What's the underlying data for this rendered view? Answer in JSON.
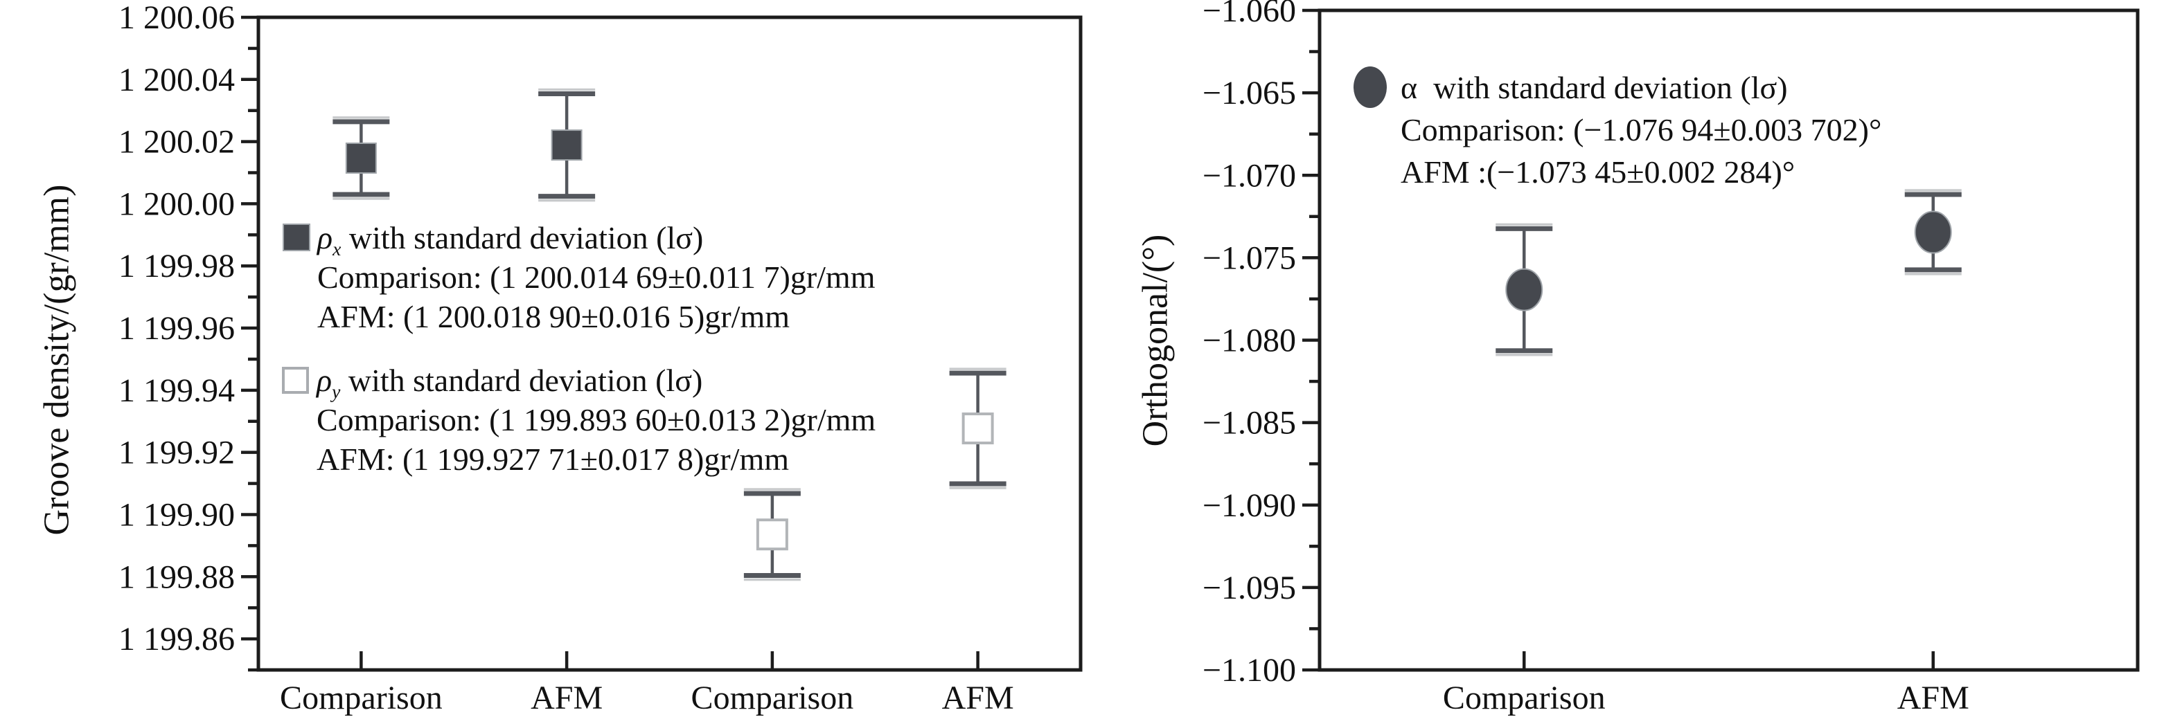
{
  "colors": {
    "marker_fill": "#45484e",
    "marker_light_edge": "#a0a5aa",
    "open_marker_border": "#b2b5b8",
    "error_bar": "#54575d",
    "error_bar_halo": "#c8cacc",
    "axis": "#1c1c1c",
    "text": "#111111",
    "background": "#ffffff"
  },
  "chart_data": [
    {
      "type": "scatter",
      "title": "",
      "xlabel": "",
      "ylabel": "Groove density/(gr/mm)",
      "ylim": [
        1199.85,
        1200.06
      ],
      "grid": false,
      "legend_position": "inside-middle-left",
      "yticks": [
        {
          "value": 1200.06,
          "label": "1 200.06"
        },
        {
          "value": 1200.04,
          "label": "1 200.04"
        },
        {
          "value": 1200.02,
          "label": "1 200.02"
        },
        {
          "value": 1200.0,
          "label": "1 200.00"
        },
        {
          "value": 1199.98,
          "label": "1 199.98"
        },
        {
          "value": 1199.96,
          "label": "1 199.96"
        },
        {
          "value": 1199.94,
          "label": "1 199.94"
        },
        {
          "value": 1199.92,
          "label": "1 199.92"
        },
        {
          "value": 1199.9,
          "label": "1 199.90"
        },
        {
          "value": 1199.88,
          "label": "1 199.88"
        },
        {
          "value": 1199.86,
          "label": "1 199.86"
        }
      ],
      "categories": [
        "Comparison",
        "AFM",
        "Comparison",
        "AFM"
      ],
      "series": [
        {
          "name": "rho_x",
          "marker": "filled-square",
          "points": [
            {
              "category_index": 0,
              "y": 1200.01469,
              "sd": 0.0117
            },
            {
              "category_index": 1,
              "y": 1200.0189,
              "sd": 0.0165
            }
          ]
        },
        {
          "name": "rho_y",
          "marker": "open-square",
          "points": [
            {
              "category_index": 2,
              "y": 1199.8936,
              "sd": 0.0132
            },
            {
              "category_index": 3,
              "y": 1199.92771,
              "sd": 0.0178
            }
          ]
        }
      ],
      "legend": [
        {
          "marker": "filled-square",
          "symbol": "ρ",
          "sub": "x",
          "rest": " with standard deviation (lσ)",
          "line2": "Comparison: (1 200.014 69±0.011 7)gr/mm",
          "line3": "AFM: (1 200.018 90±0.016 5)gr/mm"
        },
        {
          "marker": "open-square",
          "symbol": "ρ",
          "sub": "y",
          "rest": " with standard deviation (lσ)",
          "line2": "Comparison: (1 199.893 60±0.013 2)gr/mm",
          "line3": "AFM: (1 199.927 71±0.017 8)gr/mm"
        }
      ]
    },
    {
      "type": "scatter",
      "title": "",
      "xlabel": "",
      "ylabel": "Orthogonal/(°)",
      "ylim": [
        -1.1,
        -1.06
      ],
      "grid": false,
      "legend_position": "inside-top-left",
      "yticks": [
        {
          "value": -1.06,
          "label": "−1.060"
        },
        {
          "value": -1.065,
          "label": "−1.065"
        },
        {
          "value": -1.07,
          "label": "−1.070"
        },
        {
          "value": -1.075,
          "label": "−1.075"
        },
        {
          "value": -1.08,
          "label": "−1.080"
        },
        {
          "value": -1.085,
          "label": "−1.085"
        },
        {
          "value": -1.09,
          "label": "−1.090"
        },
        {
          "value": -1.095,
          "label": "−1.095"
        },
        {
          "value": -1.1,
          "label": "−1.100"
        }
      ],
      "categories": [
        "Comparison",
        "AFM"
      ],
      "series": [
        {
          "name": "alpha",
          "marker": "filled-circle",
          "points": [
            {
              "category_index": 0,
              "y": -1.07694,
              "sd": 0.003702
            },
            {
              "category_index": 1,
              "y": -1.07345,
              "sd": 0.002284
            }
          ]
        }
      ],
      "legend": [
        {
          "marker": "filled-circle",
          "symbol": "α",
          "sub": "",
          "rest": "  with standard deviation (lσ)",
          "line2": "Comparison: (−1.076 94±0.003 702)°",
          "line3": "AFM :(−1.073 45±0.002 284)°"
        }
      ]
    }
  ]
}
